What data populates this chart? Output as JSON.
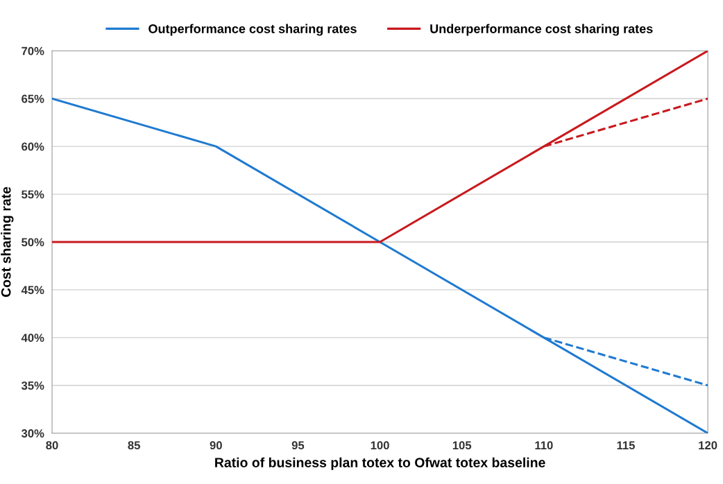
{
  "chart_data": {
    "type": "line",
    "xlabel": "Ratio of business plan totex to Ofwat totex baseline",
    "ylabel": "Cost sharing rate",
    "series": [
      {
        "name": "Outperformance cost sharing rates",
        "color": "#1f7ad0",
        "x": [
          80,
          90,
          100,
          110,
          120
        ],
        "values": [
          65,
          60,
          50,
          40,
          30
        ],
        "line_style": "solid"
      },
      {
        "name": "Underperformance cost sharing rates",
        "color": "#c8191e",
        "x": [
          80,
          90,
          100,
          110,
          120
        ],
        "values": [
          50,
          50,
          50,
          60,
          70
        ],
        "line_style": "solid"
      },
      {
        "color": "#1f7ad0",
        "x": [
          110,
          120
        ],
        "values": [
          40,
          35
        ],
        "line_style": "dashed"
      },
      {
        "color": "#c8191e",
        "x": [
          110,
          120
        ],
        "values": [
          60,
          65
        ],
        "line_style": "dashed"
      }
    ],
    "xlim": [
      80,
      120
    ],
    "xticks": [
      80,
      85,
      90,
      95,
      100,
      105,
      110,
      115,
      120
    ],
    "ylim": [
      30,
      70
    ],
    "yticks": [
      {
        "value": 30,
        "label": "30%"
      },
      {
        "value": 35,
        "label": "35%"
      },
      {
        "value": 40,
        "label": "40%"
      },
      {
        "value": 45,
        "label": "45%"
      },
      {
        "value": 50,
        "label": "50%"
      },
      {
        "value": 55,
        "label": "55%"
      },
      {
        "value": 60,
        "label": "60%"
      },
      {
        "value": 65,
        "label": "65%"
      },
      {
        "value": 70,
        "label": "70%"
      }
    ],
    "grid": "y",
    "legend": "top",
    "marker": "none"
  }
}
